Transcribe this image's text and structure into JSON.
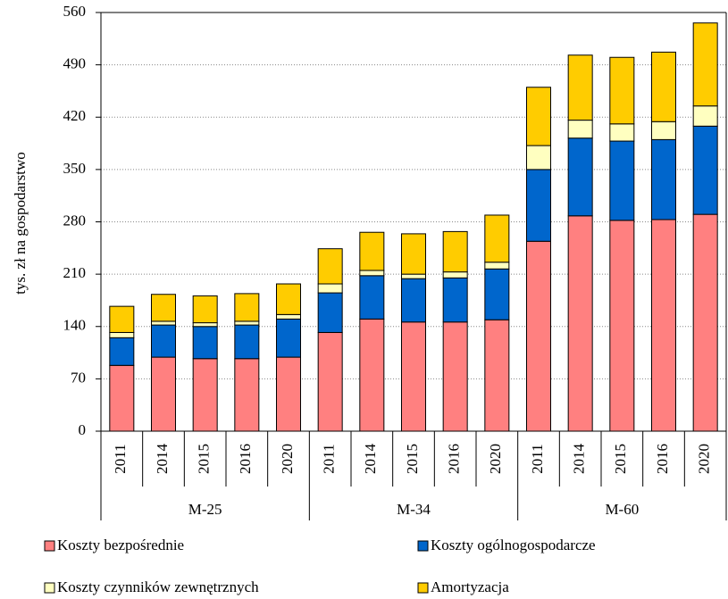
{
  "chart_data": {
    "type": "stacked-bar",
    "y_label": "tys. zł na gospodarstwo",
    "groups": [
      "M-25",
      "M-34",
      "M-60"
    ],
    "categories": [
      "2011",
      "2014",
      "2015",
      "2016",
      "2020",
      "2011",
      "2014",
      "2015",
      "2016",
      "2020",
      "2011",
      "2014",
      "2015",
      "2016",
      "2020"
    ],
    "series": [
      {
        "name": "Koszty bezpośrednie",
        "color": "#ff8080",
        "values": [
          88,
          99,
          97,
          97,
          99,
          132,
          150,
          146,
          146,
          149,
          254,
          288,
          282,
          283,
          290
        ]
      },
      {
        "name": "Koszty ogólnogospodarcze",
        "color": "#0066cc",
        "values": [
          37,
          43,
          43,
          45,
          51,
          53,
          58,
          58,
          59,
          68,
          96,
          104,
          106,
          107,
          118
        ]
      },
      {
        "name": "Koszty czynników zewnętrznych",
        "color": "#ffffc0",
        "values": [
          7,
          5,
          5,
          5,
          6,
          12,
          7,
          6,
          8,
          9,
          32,
          24,
          23,
          24,
          27
        ]
      },
      {
        "name": "Amortyzacja",
        "color": "#ffcc00",
        "values": [
          35,
          36,
          36,
          37,
          41,
          47,
          51,
          54,
          54,
          63,
          78,
          87,
          89,
          93,
          111
        ]
      }
    ],
    "ylim": [
      0,
      560
    ],
    "yticks": [
      0,
      70,
      140,
      210,
      280,
      350,
      420,
      490,
      560
    ],
    "grid": true,
    "legend": "bottom"
  }
}
